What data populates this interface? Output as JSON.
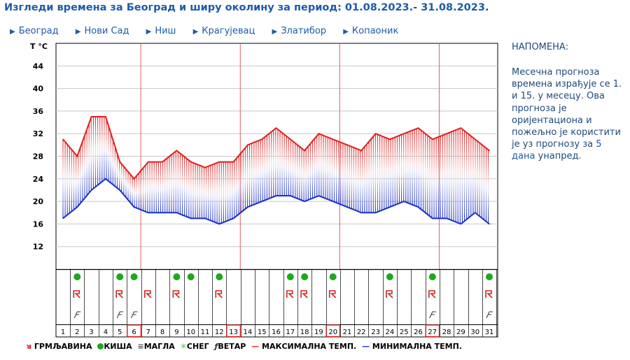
{
  "title": "Изгледи времена за Београд и ширу околину за период: 01.08.2023.- 31.08.2023.",
  "cities": [
    "Београд",
    "Нови Сад",
    "Ниш",
    "Крагујевац",
    "Златибор",
    "Копаоник"
  ],
  "note": {
    "heading": "НАПОМЕНА:",
    "text_before": "Месечна прогноза времена израђује се 1. и 15. у месецу. Ова прогноза је оријентациона и пожељно је користити је уз прогнозу за ",
    "highlight": "5 дана",
    "text_after": " унапред."
  },
  "legend": {
    "thunder": "ГРМЉАВИНА",
    "rain": "КИША",
    "fog": "МАГЛА",
    "snow": "СНЕГ",
    "wind": "ВЕТАР",
    "max": "МАКСИМАЛНА ТЕМП.",
    "min": "МИНИМАЛНА ТЕМП."
  },
  "colors": {
    "max": "#e02020",
    "min": "#1a2fc8",
    "rain": "#1ea81e",
    "thunder": "#d22222",
    "weekend_line": "#e06060"
  },
  "chart_data": {
    "type": "area",
    "ylabel": "T °C",
    "y_ticks": [
      12,
      16,
      20,
      24,
      28,
      32,
      36,
      40,
      44
    ],
    "ylim": [
      8,
      48
    ],
    "x": [
      1,
      2,
      3,
      4,
      5,
      6,
      7,
      8,
      9,
      10,
      11,
      12,
      13,
      14,
      15,
      16,
      17,
      18,
      19,
      20,
      21,
      22,
      23,
      24,
      25,
      26,
      27,
      28,
      29,
      30,
      31
    ],
    "series": [
      {
        "name": "МАКСИМАЛНА ТЕМП.",
        "values": [
          31,
          28,
          35,
          35,
          27,
          24,
          27,
          27,
          29,
          27,
          26,
          27,
          27,
          30,
          31,
          33,
          31,
          29,
          32,
          31,
          30,
          29,
          32,
          31,
          32,
          33,
          31,
          32,
          33,
          31,
          29
        ]
      },
      {
        "name": "МИНИМАЛНА ТЕМП.",
        "values": [
          17,
          19,
          22,
          24,
          22,
          19,
          18,
          18,
          18,
          17,
          17,
          16,
          17,
          19,
          20,
          21,
          21,
          20,
          21,
          20,
          19,
          18,
          18,
          19,
          20,
          19,
          17,
          17,
          16,
          18,
          16
        ]
      }
    ],
    "highlighted_days": [
      6,
      13,
      20,
      27
    ],
    "weekend_days": [
      6,
      13,
      20,
      27
    ],
    "rain_days": [
      2,
      5,
      6,
      9,
      10,
      12,
      17,
      18,
      20,
      24,
      27,
      31
    ],
    "thunder_days": [
      2,
      5,
      7,
      9,
      12,
      17,
      18,
      20,
      24,
      27,
      31
    ],
    "wind_days": [
      2,
      5,
      6,
      27,
      31
    ]
  }
}
